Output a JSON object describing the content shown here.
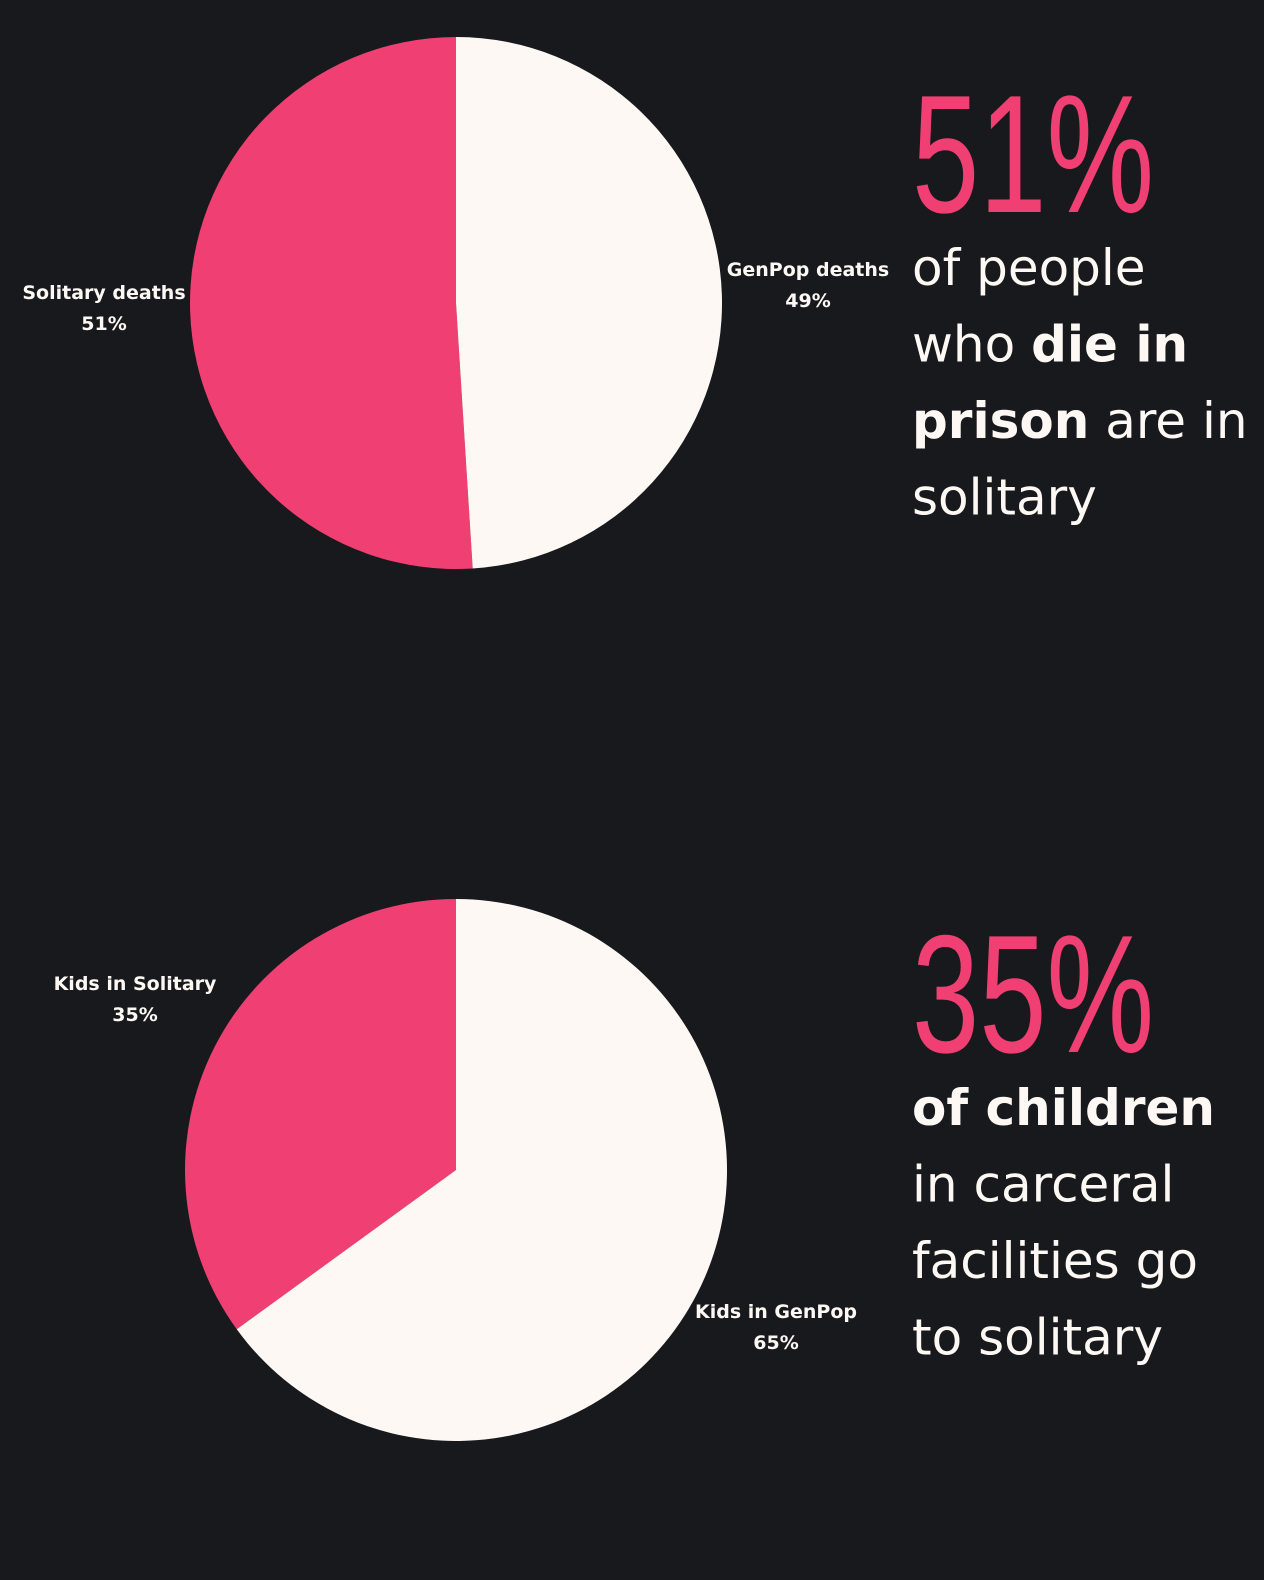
{
  "chart_data": [
    {
      "type": "pie",
      "direction": "counterclockwise",
      "categories": [
        "Solitary deaths",
        "GenPop deaths"
      ],
      "values": [
        51,
        49
      ],
      "value_labels": [
        "51%",
        "49%"
      ],
      "colors": [
        "#f03f72",
        "#fdf8f4"
      ],
      "headline": "51%",
      "statement": [
        [
          {
            "text": "of people"
          }
        ],
        [
          {
            "text": "who "
          },
          {
            "text": "die in",
            "bold": true
          }
        ],
        [
          {
            "text": "prison",
            "bold": true
          },
          {
            "text": " are in"
          }
        ],
        [
          {
            "text": "solitary"
          }
        ]
      ]
    },
    {
      "type": "pie",
      "direction": "counterclockwise",
      "categories": [
        "Kids in Solitary",
        "Kids in GenPop"
      ],
      "values": [
        35,
        65
      ],
      "value_labels": [
        "35%",
        "65%"
      ],
      "colors": [
        "#f03f72",
        "#fdf8f4"
      ],
      "headline": "35%",
      "statement": [
        [
          {
            "text": "of children",
            "bold": true
          }
        ],
        [
          {
            "text": "in carceral"
          }
        ],
        [
          {
            "text": "facilities go"
          }
        ],
        [
          {
            "text": "to solitary"
          }
        ]
      ]
    }
  ]
}
